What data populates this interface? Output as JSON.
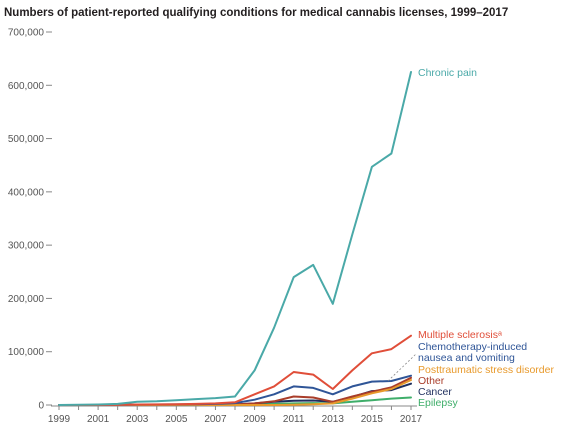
{
  "chart_data": {
    "type": "line",
    "title": "Numbers of patient-reported qualifying conditions for medical cannabis licenses, 1999–2017",
    "xlabel": "",
    "ylabel": "",
    "xlim": [
      1999,
      2017
    ],
    "ylim": [
      0,
      700000
    ],
    "grid": false,
    "x": [
      1999,
      2000,
      2001,
      2002,
      2003,
      2004,
      2005,
      2006,
      2007,
      2008,
      2009,
      2010,
      2011,
      2012,
      2013,
      2014,
      2015,
      2016,
      2017
    ],
    "x_ticks": [
      1999,
      2001,
      2003,
      2005,
      2007,
      2009,
      2011,
      2013,
      2015,
      2017
    ],
    "x_tick_labels": [
      "1999",
      "2001",
      "2003",
      "2005",
      "2007",
      "2009",
      "2011",
      "2013",
      "2015",
      "2017"
    ],
    "y_ticks": [
      0,
      100000,
      200000,
      300000,
      400000,
      500000,
      600000,
      700000
    ],
    "y_tick_labels": [
      "0",
      "100,000",
      "200,000",
      "300,000",
      "400,000",
      "500,000",
      "600,000",
      "700,000"
    ],
    "series": [
      {
        "name": "Chronic pain",
        "color": "#4aa9a8",
        "values": [
          0,
          500,
          1000,
          2000,
          6000,
          7000,
          9000,
          11000,
          13000,
          16000,
          65000,
          145000,
          240000,
          263000,
          190000,
          320000,
          447000,
          472000,
          625000
        ]
      },
      {
        "name": "Multiple sclerosisᵃ",
        "color": "#e04e39",
        "values": [
          0,
          0,
          0,
          500,
          1000,
          1200,
          1500,
          2000,
          3000,
          5000,
          20000,
          35000,
          62000,
          57000,
          30000,
          65000,
          97000,
          105000,
          130000
        ]
      },
      {
        "name": "Chemotherapy-induced nausea and vomiting",
        "color": "#2f5597",
        "values": [
          0,
          0,
          0,
          300,
          700,
          900,
          1100,
          1500,
          2000,
          3500,
          10000,
          20000,
          35000,
          32000,
          20000,
          35000,
          44000,
          45000,
          55000
        ]
      },
      {
        "name": "Posttraumatic stress disorder",
        "color": "#e89a2c",
        "values": [
          0,
          0,
          0,
          0,
          0,
          0,
          0,
          0,
          0,
          0,
          0,
          0,
          500,
          1500,
          3000,
          12000,
          22000,
          30000,
          47000
        ]
      },
      {
        "name": "Other",
        "color": "#a93d2a",
        "values": [
          0,
          0,
          0,
          100,
          300,
          400,
          500,
          600,
          800,
          1000,
          3000,
          7000,
          16000,
          14000,
          6000,
          16000,
          25000,
          33000,
          51000
        ]
      },
      {
        "name": "Cancer",
        "color": "#1f2f5e",
        "values": [
          0,
          0,
          0,
          100,
          300,
          400,
          500,
          600,
          800,
          1000,
          3000,
          6000,
          8000,
          8500,
          6000,
          15000,
          26000,
          28000,
          40000
        ]
      },
      {
        "name": "Epilepsy",
        "color": "#3fae6a",
        "values": [
          0,
          0,
          0,
          100,
          200,
          300,
          400,
          500,
          600,
          700,
          1000,
          2000,
          3000,
          3500,
          3000,
          6000,
          9000,
          12000,
          14000
        ]
      }
    ],
    "legend_placement": "right-end-of-lines"
  }
}
